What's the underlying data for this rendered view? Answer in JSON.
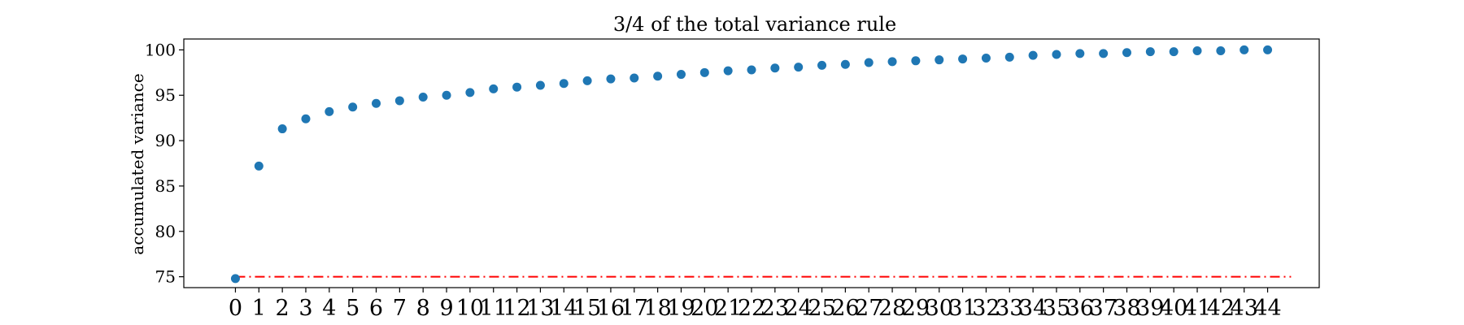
{
  "chart_data": {
    "type": "scatter",
    "title": "3/4 of the total variance rule",
    "xlabel": "",
    "ylabel": "accumulated variance",
    "xlim": [
      -2.2,
      46.2
    ],
    "ylim": [
      73.8,
      101.2
    ],
    "y_ticks": [
      75,
      80,
      85,
      90,
      95,
      100
    ],
    "x_ticks": [
      0,
      1,
      2,
      3,
      4,
      5,
      6,
      7,
      8,
      9,
      10,
      11,
      12,
      13,
      14,
      15,
      16,
      17,
      18,
      19,
      20,
      21,
      22,
      23,
      24,
      25,
      26,
      27,
      28,
      29,
      30,
      31,
      32,
      33,
      34,
      35,
      36,
      37,
      38,
      39,
      40,
      41,
      42,
      43,
      44
    ],
    "grid": false,
    "series": [
      {
        "color": "#1f77b4",
        "x": [
          0,
          1,
          2,
          3,
          4,
          5,
          6,
          7,
          8,
          9,
          10,
          11,
          12,
          13,
          14,
          15,
          16,
          17,
          18,
          19,
          20,
          21,
          22,
          23,
          24,
          25,
          26,
          27,
          28,
          29,
          30,
          31,
          32,
          33,
          34,
          35,
          36,
          37,
          38,
          39,
          40,
          41,
          42,
          43,
          44
        ],
        "y": [
          74.8,
          87.2,
          91.3,
          92.4,
          93.2,
          93.7,
          94.1,
          94.4,
          94.8,
          95.0,
          95.3,
          95.7,
          95.9,
          96.1,
          96.3,
          96.6,
          96.8,
          96.9,
          97.1,
          97.3,
          97.5,
          97.7,
          97.8,
          98.0,
          98.1,
          98.3,
          98.4,
          98.6,
          98.7,
          98.8,
          98.9,
          99.0,
          99.1,
          99.2,
          99.4,
          99.5,
          99.6,
          99.6,
          99.7,
          99.8,
          99.8,
          99.9,
          99.9,
          100.0,
          100.0
        ]
      }
    ],
    "threshold_line": {
      "y": 75,
      "x_start": 0,
      "x_end": 45,
      "color": "#ff0000",
      "style": "dash-dot"
    }
  }
}
